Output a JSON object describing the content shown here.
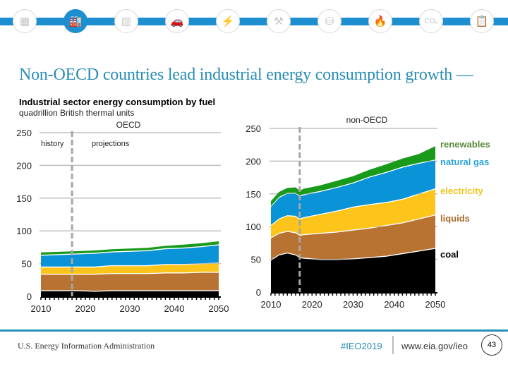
{
  "nav": {
    "icons": [
      {
        "name": "overview-icon",
        "glyph": "▦",
        "active": false
      },
      {
        "name": "industrial-icon",
        "glyph": "🏭",
        "active": true
      },
      {
        "name": "buildings-icon",
        "glyph": "▥",
        "active": false
      },
      {
        "name": "transportation-icon",
        "glyph": "🚗",
        "active": false
      },
      {
        "name": "electricity-icon",
        "glyph": "⚡",
        "active": false
      },
      {
        "name": "coal-mining-icon",
        "glyph": "⚒",
        "active": false
      },
      {
        "name": "petroleum-barrel-icon",
        "glyph": "⛁",
        "active": false
      },
      {
        "name": "natural-gas-flame-icon",
        "glyph": "🔥",
        "active": false
      },
      {
        "name": "co2-icon",
        "glyph": "CO₂",
        "active": false
      },
      {
        "name": "documents-icon",
        "glyph": "📋",
        "active": false
      }
    ]
  },
  "title": "Non-OECD countries lead industrial energy consumption growth —",
  "subtitle": "Industrial sector energy consumption by fuel",
  "units": "quadrillion British thermal units",
  "colors": {
    "coal": "#000000",
    "liquids": "#b87333",
    "electricity": "#fdc51c",
    "natural_gas": "#0a93d6",
    "renewables": "#1a9a1a",
    "label_coal": "#000000",
    "label_liquids": "#a86b2e",
    "label_electricity": "#f0c419",
    "label_natural_gas": "#2aa3d8",
    "label_renewables": "#5a8a3a",
    "grid": "#bfbfbf",
    "divider": "#a6a6a6",
    "accent": "#1d8fd0"
  },
  "chart_data": [
    {
      "type": "area",
      "title": "OECD",
      "xlabel": "",
      "ylabel": "quadrillion British thermal units",
      "ylim": [
        0,
        250
      ],
      "yticks": [
        0,
        50,
        100,
        150,
        200,
        250
      ],
      "xlim": [
        2010,
        2050
      ],
      "xticks": [
        "2010",
        "2020",
        "2030",
        "2040",
        "2050"
      ],
      "grid": true,
      "stacked": true,
      "annotations": {
        "history": "history",
        "projections": "projections",
        "divider_year": 2017
      },
      "x": [
        2010,
        2014,
        2018,
        2022,
        2026,
        2030,
        2034,
        2038,
        2042,
        2046,
        2050
      ],
      "series": [
        {
          "name": "coal",
          "values": [
            8,
            8,
            8,
            7,
            8,
            8,
            8,
            8,
            8,
            8,
            8
          ]
        },
        {
          "name": "liquids",
          "values": [
            25,
            25,
            25,
            26,
            26,
            26,
            26,
            27,
            27,
            28,
            28
          ]
        },
        {
          "name": "electricity",
          "values": [
            11,
            11,
            11,
            11,
            12,
            12,
            12,
            13,
            13,
            13,
            14
          ]
        },
        {
          "name": "natural gas",
          "values": [
            18,
            19,
            20,
            21,
            21,
            22,
            23,
            24,
            25,
            26,
            28
          ]
        },
        {
          "name": "renewables",
          "values": [
            5,
            5,
            5,
            5,
            5,
            5,
            5,
            5,
            6,
            6,
            6
          ]
        }
      ]
    },
    {
      "type": "area",
      "title": "non-OECD",
      "xlabel": "",
      "ylabel": "quadrillion British thermal units",
      "ylim": [
        0,
        250
      ],
      "yticks": [
        0,
        50,
        100,
        150,
        200,
        250
      ],
      "xlim": [
        2010,
        2050
      ],
      "xticks": [
        "2010",
        "2020",
        "2030",
        "2040",
        "2050"
      ],
      "grid": true,
      "stacked": true,
      "annotations": {
        "divider_year": 2017
      },
      "legend": [
        "renewables",
        "natural gas",
        "electricity",
        "liquids",
        "coal"
      ],
      "legend_placement": "right",
      "x": [
        2010,
        2012,
        2014,
        2016,
        2017,
        2018,
        2022,
        2026,
        2030,
        2034,
        2038,
        2042,
        2046,
        2050
      ],
      "series": [
        {
          "name": "coal",
          "values": [
            48,
            56,
            59,
            56,
            52,
            51,
            49,
            49,
            50,
            52,
            54,
            58,
            62,
            66
          ]
        },
        {
          "name": "liquids",
          "values": [
            34,
            33,
            33,
            34,
            34,
            36,
            40,
            42,
            44,
            45,
            47,
            47,
            49,
            51
          ]
        },
        {
          "name": "electricity",
          "values": [
            19,
            22,
            24,
            25,
            25,
            26,
            29,
            32,
            35,
            36,
            35,
            36,
            38,
            40
          ]
        },
        {
          "name": "natural gas",
          "values": [
            29,
            33,
            34,
            35,
            35,
            35,
            35,
            36,
            37,
            42,
            46,
            49,
            47,
            44
          ]
        },
        {
          "name": "renewables",
          "values": [
            9,
            9,
            9,
            10,
            9,
            10,
            10,
            11,
            11,
            12,
            13,
            14,
            15,
            22
          ]
        }
      ]
    }
  ],
  "footer": {
    "agency": "U.S. Energy Information Administration",
    "hashtag": "#IEO2019",
    "url": "www.eia.gov/ieo",
    "page": "43"
  }
}
